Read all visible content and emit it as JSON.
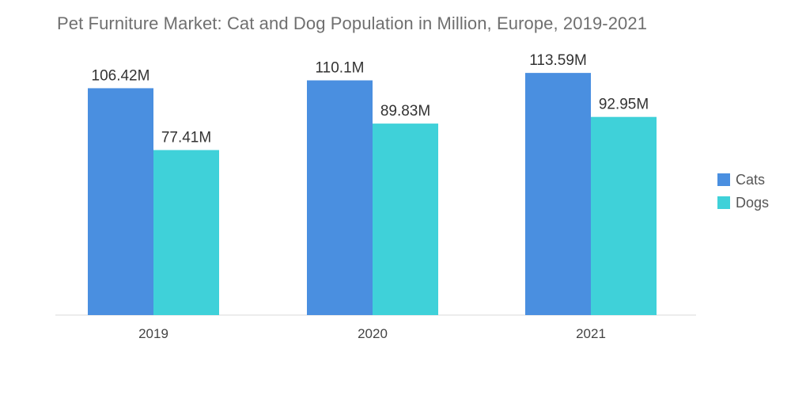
{
  "title": "Pet Furniture Market: Cat and Dog Population in Million, Europe, 2019-2021",
  "chart_data": {
    "type": "bar",
    "title": "Pet Furniture Market: Cat and Dog Population in Million, Europe, 2019-2021",
    "categories": [
      "2019",
      "2020",
      "2021"
    ],
    "series": [
      {
        "name": "Cats",
        "color": "#4a8fe0",
        "values": [
          106.42,
          110.1,
          113.59
        ],
        "labels": [
          "106.42M",
          "110.1M",
          "113.59M"
        ]
      },
      {
        "name": "Dogs",
        "color": "#3fd1d9",
        "values": [
          77.41,
          89.83,
          92.95
        ],
        "labels": [
          "77.41M",
          "89.83M",
          "92.95M"
        ]
      }
    ],
    "xlabel": "",
    "ylabel": "",
    "ylim": [
      0,
      127
    ],
    "grid": false,
    "legend": "right"
  }
}
